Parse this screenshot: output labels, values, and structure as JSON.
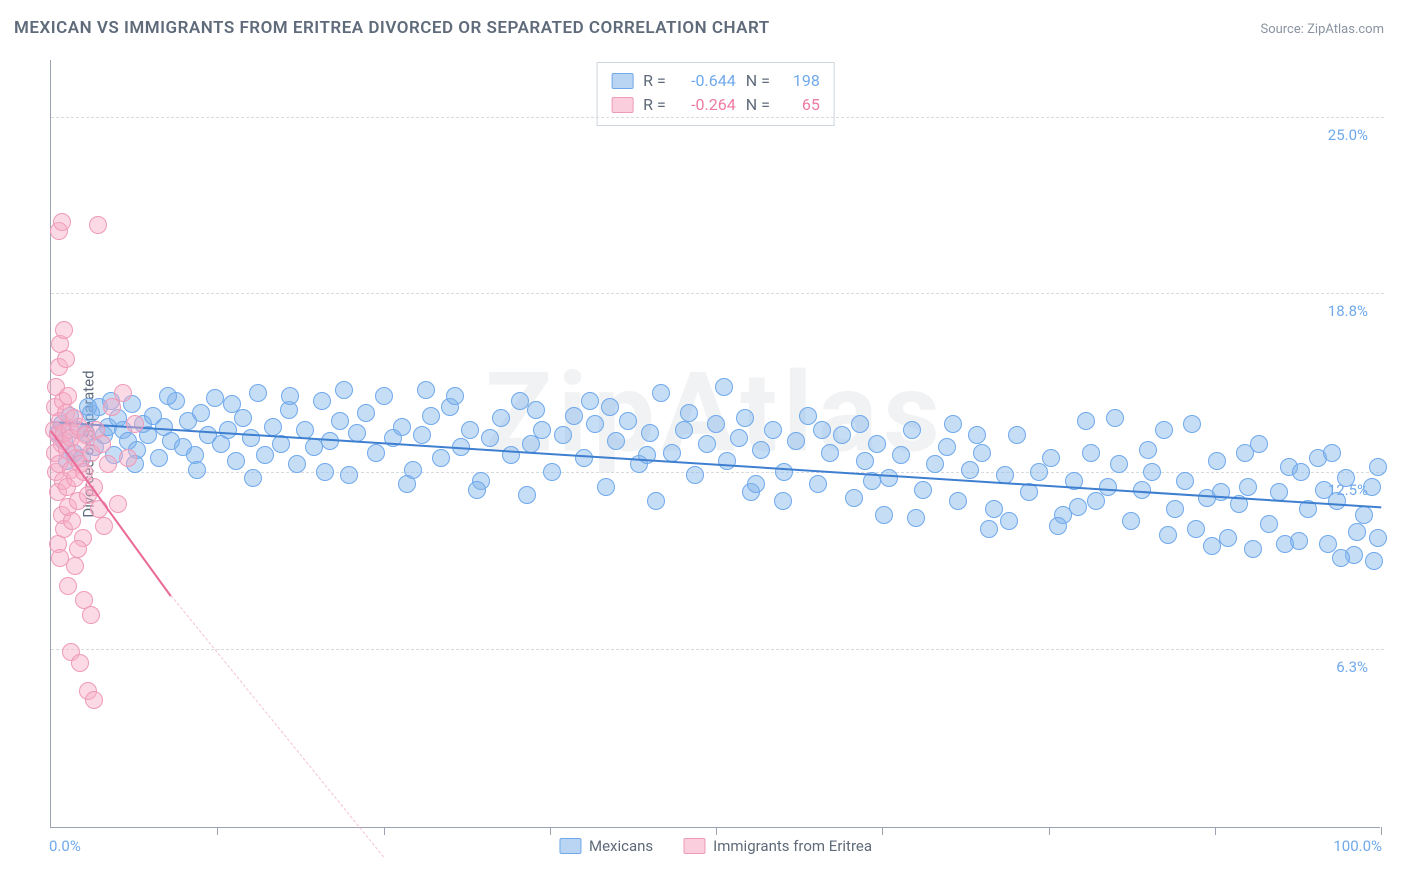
{
  "title": "MEXICAN VS IMMIGRANTS FROM ERITREA DIVORCED OR SEPARATED CORRELATION CHART",
  "source_label": "Source: ZipAtlas.com",
  "watermark": "ZipAtlas",
  "chart": {
    "type": "scatter",
    "background_color": "#ffffff",
    "grid_color": "#d7dbe0",
    "axis_color": "#9aa3af",
    "ylabel": "Divorced or Separated",
    "label_fontsize": 15,
    "label_color": "#5f6b7a",
    "xlim": [
      0,
      100
    ],
    "ylim": [
      0,
      27
    ],
    "x_axis_labels": [
      {
        "x": 0,
        "text": "0.0%"
      },
      {
        "x": 100,
        "text": "100.0%"
      }
    ],
    "x_ticks": [
      12.5,
      25,
      37.5,
      50,
      62.5,
      75,
      87.5,
      100
    ],
    "y_ticks": [
      {
        "y": 6.3,
        "label": "6.3%"
      },
      {
        "y": 12.5,
        "label": "12.5%"
      },
      {
        "y": 18.8,
        "label": "18.8%"
      },
      {
        "y": 25.0,
        "label": "25.0%"
      }
    ],
    "y_tick_color": "#6fa9ec",
    "marker_radius": 9,
    "marker_stroke_width": 1.2,
    "series": [
      {
        "name": "Mexicans",
        "fill_color": "rgba(129,179,234,0.45)",
        "stroke_color": "#6fa9ec",
        "stats": {
          "R": "-0.644",
          "N": "198",
          "text_color": "#6fa9ec"
        },
        "swatch_fill": "rgba(129,179,234,0.55)",
        "swatch_border": "#6fa9ec",
        "trend": {
          "x1": 0,
          "y1": 14.3,
          "x2": 100,
          "y2": 11.3,
          "solid_color": "#3e7fd0",
          "solid_width": 2.5,
          "dash_color": "#bcd6f2",
          "dash_from_x": 100
        },
        "points": [
          [
            0.5,
            13.9
          ],
          [
            0.8,
            14.2
          ],
          [
            1.0,
            13.6
          ],
          [
            1.4,
            14.5
          ],
          [
            1.7,
            13.2
          ],
          [
            2.0,
            14.0
          ],
          [
            2.3,
            13.0
          ],
          [
            2.6,
            13.9
          ],
          [
            3.0,
            14.6
          ],
          [
            3.3,
            13.4
          ],
          [
            3.6,
            14.8
          ],
          [
            4.0,
            13.8
          ],
          [
            4.3,
            14.1
          ],
          [
            4.7,
            13.1
          ],
          [
            5.0,
            14.4
          ],
          [
            5.4,
            14.0
          ],
          [
            5.8,
            13.6
          ],
          [
            6.1,
            14.9
          ],
          [
            6.5,
            13.3
          ],
          [
            6.9,
            14.2
          ],
          [
            7.3,
            13.8
          ],
          [
            7.7,
            14.5
          ],
          [
            8.1,
            13.0
          ],
          [
            8.5,
            14.1
          ],
          [
            9.0,
            13.6
          ],
          [
            9.4,
            15.0
          ],
          [
            9.9,
            13.4
          ],
          [
            10.3,
            14.3
          ],
          [
            10.8,
            13.1
          ],
          [
            11.3,
            14.6
          ],
          [
            11.8,
            13.8
          ],
          [
            12.3,
            15.1
          ],
          [
            12.8,
            13.5
          ],
          [
            13.3,
            14.0
          ],
          [
            13.9,
            12.9
          ],
          [
            14.4,
            14.4
          ],
          [
            15.0,
            13.7
          ],
          [
            15.6,
            15.3
          ],
          [
            16.1,
            13.1
          ],
          [
            16.7,
            14.1
          ],
          [
            17.3,
            13.5
          ],
          [
            17.9,
            14.7
          ],
          [
            18.5,
            12.8
          ],
          [
            19.1,
            14.0
          ],
          [
            19.8,
            13.4
          ],
          [
            20.4,
            15.0
          ],
          [
            21.0,
            13.6
          ],
          [
            21.7,
            14.3
          ],
          [
            22.4,
            12.4
          ],
          [
            23.0,
            13.9
          ],
          [
            23.7,
            14.6
          ],
          [
            24.4,
            13.2
          ],
          [
            25.0,
            15.2
          ],
          [
            25.7,
            13.7
          ],
          [
            26.4,
            14.1
          ],
          [
            27.2,
            12.6
          ],
          [
            27.9,
            13.8
          ],
          [
            28.6,
            14.5
          ],
          [
            29.3,
            13.0
          ],
          [
            30.0,
            14.8
          ],
          [
            30.8,
            13.4
          ],
          [
            31.5,
            14.0
          ],
          [
            32.3,
            12.2
          ],
          [
            33.0,
            13.7
          ],
          [
            33.8,
            14.4
          ],
          [
            34.6,
            13.1
          ],
          [
            35.3,
            15.0
          ],
          [
            36.1,
            13.5
          ],
          [
            36.9,
            14.0
          ],
          [
            37.7,
            12.5
          ],
          [
            38.5,
            13.8
          ],
          [
            39.3,
            14.5
          ],
          [
            40.1,
            13.0
          ],
          [
            40.9,
            14.2
          ],
          [
            41.7,
            12.0
          ],
          [
            42.5,
            13.6
          ],
          [
            43.4,
            14.3
          ],
          [
            44.2,
            12.8
          ],
          [
            45.0,
            13.9
          ],
          [
            45.9,
            15.3
          ],
          [
            46.7,
            13.2
          ],
          [
            47.6,
            14.0
          ],
          [
            48.4,
            12.4
          ],
          [
            49.3,
            13.5
          ],
          [
            50.0,
            14.2
          ],
          [
            50.8,
            12.9
          ],
          [
            51.7,
            13.7
          ],
          [
            52.6,
            11.8
          ],
          [
            53.4,
            13.3
          ],
          [
            54.3,
            14.0
          ],
          [
            55.1,
            12.5
          ],
          [
            56.0,
            13.6
          ],
          [
            56.9,
            14.5
          ],
          [
            57.7,
            12.1
          ],
          [
            58.6,
            13.2
          ],
          [
            59.5,
            13.8
          ],
          [
            60.4,
            11.6
          ],
          [
            61.2,
            12.9
          ],
          [
            62.1,
            13.5
          ],
          [
            63.0,
            12.3
          ],
          [
            63.9,
            13.1
          ],
          [
            64.7,
            14.0
          ],
          [
            65.6,
            11.9
          ],
          [
            66.5,
            12.8
          ],
          [
            67.4,
            13.4
          ],
          [
            68.2,
            11.5
          ],
          [
            69.1,
            12.6
          ],
          [
            70.0,
            13.2
          ],
          [
            70.9,
            11.2
          ],
          [
            71.7,
            12.4
          ],
          [
            72.6,
            13.8
          ],
          [
            73.5,
            11.8
          ],
          [
            74.3,
            12.5
          ],
          [
            75.2,
            13.0
          ],
          [
            76.1,
            11.0
          ],
          [
            76.9,
            12.2
          ],
          [
            77.8,
            14.3
          ],
          [
            78.6,
            11.5
          ],
          [
            79.5,
            12.0
          ],
          [
            80.3,
            12.8
          ],
          [
            81.2,
            10.8
          ],
          [
            82.0,
            11.9
          ],
          [
            82.8,
            12.5
          ],
          [
            83.7,
            14.0
          ],
          [
            84.5,
            11.2
          ],
          [
            85.3,
            12.2
          ],
          [
            86.1,
            10.5
          ],
          [
            86.9,
            11.6
          ],
          [
            87.7,
            12.9
          ],
          [
            88.5,
            10.2
          ],
          [
            89.3,
            11.4
          ],
          [
            90.0,
            12.0
          ],
          [
            90.8,
            13.5
          ],
          [
            91.6,
            10.7
          ],
          [
            92.3,
            11.8
          ],
          [
            93.1,
            12.7
          ],
          [
            93.8,
            10.1
          ],
          [
            94.5,
            11.2
          ],
          [
            95.3,
            13.0
          ],
          [
            96.0,
            10.0
          ],
          [
            96.7,
            11.5
          ],
          [
            97.4,
            12.3
          ],
          [
            98.0,
            9.6
          ],
          [
            98.7,
            11.0
          ],
          [
            99.3,
            12.0
          ],
          [
            99.8,
            10.2
          ],
          [
            99.8,
            12.7
          ],
          [
            99.5,
            9.4
          ],
          [
            98.2,
            10.4
          ],
          [
            50.6,
            15.5
          ],
          [
            32.0,
            11.9
          ],
          [
            55.0,
            11.5
          ],
          [
            70.5,
            10.5
          ],
          [
            80.0,
            14.4
          ],
          [
            85.8,
            14.2
          ],
          [
            40.5,
            15.0
          ],
          [
            45.5,
            11.5
          ],
          [
            60.8,
            14.2
          ],
          [
            65.0,
            10.9
          ],
          [
            75.7,
            10.6
          ],
          [
            78.2,
            13.2
          ],
          [
            82.5,
            13.3
          ],
          [
            87.3,
            9.9
          ],
          [
            90.4,
            9.8
          ],
          [
            92.8,
            10.0
          ],
          [
            95.7,
            11.9
          ],
          [
            97.0,
            9.5
          ],
          [
            30.4,
            15.2
          ],
          [
            35.8,
            11.7
          ],
          [
            42.0,
            14.8
          ],
          [
            48.0,
            14.6
          ],
          [
            52.2,
            14.4
          ],
          [
            58.0,
            14.0
          ],
          [
            62.6,
            11.0
          ],
          [
            67.8,
            14.2
          ],
          [
            72.0,
            10.8
          ],
          [
            77.2,
            11.3
          ],
          [
            84.0,
            10.3
          ],
          [
            89.8,
            13.2
          ],
          [
            94.0,
            12.5
          ],
          [
            22.0,
            15.4
          ],
          [
            26.8,
            12.1
          ],
          [
            15.2,
            12.3
          ],
          [
            18.0,
            15.2
          ],
          [
            11.0,
            12.6
          ],
          [
            8.8,
            15.2
          ],
          [
            6.3,
            12.8
          ],
          [
            4.5,
            15.0
          ],
          [
            2.8,
            14.8
          ],
          [
            1.2,
            12.9
          ],
          [
            13.6,
            14.9
          ],
          [
            20.6,
            12.5
          ],
          [
            28.2,
            15.4
          ],
          [
            36.5,
            14.7
          ],
          [
            44.8,
            13.1
          ],
          [
            53.0,
            12.1
          ],
          [
            61.7,
            12.2
          ],
          [
            69.6,
            13.8
          ],
          [
            88.0,
            11.8
          ],
          [
            96.3,
            13.2
          ]
        ]
      },
      {
        "name": "Immigrants from Eritrea",
        "fill_color": "rgba(247,174,197,0.45)",
        "stroke_color": "#ef9ab8",
        "stats": {
          "R": "-0.264",
          "N": "65",
          "text_color": "#ef7aa4"
        },
        "swatch_fill": "rgba(247,174,197,0.6)",
        "swatch_border": "#ef9ab8",
        "trend": {
          "x1": 0,
          "y1": 14.0,
          "x2": 9,
          "y2": 8.2,
          "solid_color": "#ea6a98",
          "solid_width": 2,
          "dash_color": "#f4c2d4",
          "dash_extend_x": 25,
          "dash_extend_y": -1.0
        },
        "points": [
          [
            0.2,
            14.0
          ],
          [
            0.3,
            13.2
          ],
          [
            0.3,
            14.8
          ],
          [
            0.4,
            12.5
          ],
          [
            0.4,
            15.5
          ],
          [
            0.5,
            13.8
          ],
          [
            0.5,
            11.8
          ],
          [
            0.6,
            16.2
          ],
          [
            0.6,
            12.8
          ],
          [
            0.7,
            14.3
          ],
          [
            0.7,
            17.0
          ],
          [
            0.8,
            13.5
          ],
          [
            0.8,
            11.0
          ],
          [
            0.9,
            15.0
          ],
          [
            0.9,
            12.2
          ],
          [
            1.0,
            13.9
          ],
          [
            1.0,
            10.5
          ],
          [
            1.1,
            14.6
          ],
          [
            1.1,
            16.5
          ],
          [
            1.2,
            12.0
          ],
          [
            1.2,
            13.3
          ],
          [
            1.3,
            15.2
          ],
          [
            1.3,
            11.3
          ],
          [
            1.4,
            14.0
          ],
          [
            1.5,
            12.6
          ],
          [
            1.5,
            13.7
          ],
          [
            1.6,
            10.8
          ],
          [
            1.7,
            14.4
          ],
          [
            1.8,
            12.3
          ],
          [
            1.9,
            13.0
          ],
          [
            2.0,
            11.5
          ],
          [
            2.1,
            14.1
          ],
          [
            2.2,
            12.8
          ],
          [
            2.3,
            13.5
          ],
          [
            2.4,
            10.2
          ],
          [
            2.5,
            12.5
          ],
          [
            2.6,
            13.8
          ],
          [
            2.8,
            11.7
          ],
          [
            3.0,
            13.2
          ],
          [
            3.2,
            12.0
          ],
          [
            3.4,
            14.0
          ],
          [
            3.6,
            11.2
          ],
          [
            3.8,
            13.5
          ],
          [
            4.0,
            10.6
          ],
          [
            4.3,
            12.8
          ],
          [
            4.6,
            14.8
          ],
          [
            5.0,
            11.4
          ],
          [
            5.4,
            15.3
          ],
          [
            5.8,
            13.0
          ],
          [
            6.3,
            14.2
          ],
          [
            1.0,
            17.5
          ],
          [
            0.6,
            21.0
          ],
          [
            0.8,
            21.3
          ],
          [
            3.5,
            21.2
          ],
          [
            2.5,
            8.0
          ],
          [
            3.0,
            7.5
          ],
          [
            1.5,
            6.2
          ],
          [
            2.2,
            5.8
          ],
          [
            2.8,
            4.8
          ],
          [
            3.2,
            4.5
          ],
          [
            1.8,
            9.2
          ],
          [
            2.0,
            9.8
          ],
          [
            0.5,
            10.0
          ],
          [
            0.7,
            9.5
          ],
          [
            1.3,
            8.5
          ]
        ]
      }
    ],
    "bottom_legend": [
      {
        "label": "Mexicans",
        "fill": "rgba(129,179,234,0.55)",
        "border": "#6fa9ec"
      },
      {
        "label": "Immigrants from Eritrea",
        "fill": "rgba(247,174,197,0.6)",
        "border": "#ef9ab8"
      }
    ]
  }
}
